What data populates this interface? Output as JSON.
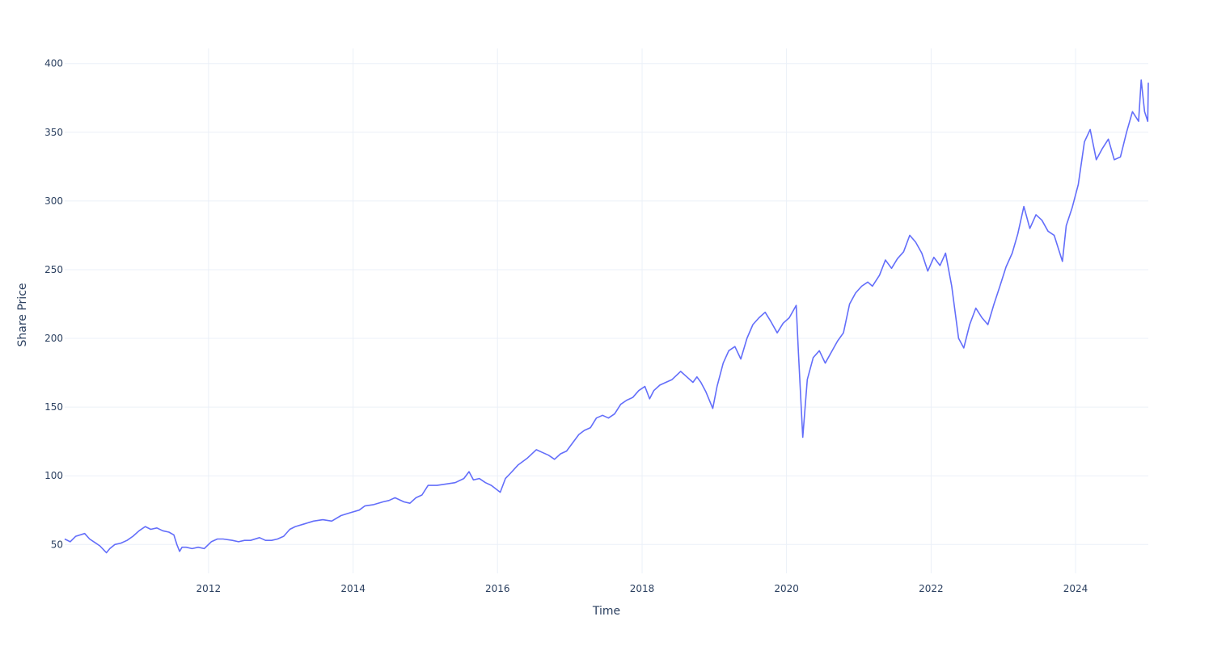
{
  "colors": {
    "line": "#636efa",
    "grid": "#ebf0f8",
    "text": "#2a3f5f",
    "background": "#ffffff"
  },
  "chart_data": {
    "type": "line",
    "title": "",
    "xlabel": "Time",
    "ylabel": "Share Price",
    "xlim": [
      "2010-01-04",
      "2025-01-03"
    ],
    "ylim": [
      29,
      411
    ],
    "grid": true,
    "legend": "none",
    "x_ticks": [
      "2012",
      "2014",
      "2016",
      "2018",
      "2020",
      "2022",
      "2024"
    ],
    "y_ticks": [
      50,
      100,
      150,
      200,
      250,
      300,
      350,
      400
    ],
    "series": [
      {
        "x": [
          "2010-01-04",
          "2010-02-01",
          "2010-03-01",
          "2010-04-15",
          "2010-05-10",
          "2010-06-10",
          "2010-07-01",
          "2010-08-03",
          "2010-08-20",
          "2010-09-15",
          "2010-10-15",
          "2010-11-15",
          "2010-12-15",
          "2011-01-15",
          "2011-02-15",
          "2011-03-15",
          "2011-04-15",
          "2011-05-15",
          "2011-06-15",
          "2011-07-10",
          "2011-07-25",
          "2011-08-08",
          "2011-08-20",
          "2011-09-10",
          "2011-10-10",
          "2011-11-10",
          "2011-12-10",
          "2012-01-15",
          "2012-02-15",
          "2012-03-15",
          "2012-05-01",
          "2012-06-01",
          "2012-07-01",
          "2012-08-01",
          "2012-09-15",
          "2012-10-15",
          "2012-11-15",
          "2012-12-15",
          "2013-01-15",
          "2013-02-15",
          "2013-03-15",
          "2013-05-01",
          "2013-06-15",
          "2013-08-01",
          "2013-09-15",
          "2013-11-01",
          "2013-12-15",
          "2014-02-01",
          "2014-03-01",
          "2014-04-15",
          "2014-06-01",
          "2014-07-01",
          "2014-08-01",
          "2014-09-15",
          "2014-10-15",
          "2014-11-15",
          "2014-12-15",
          "2015-01-15",
          "2015-03-01",
          "2015-04-15",
          "2015-06-01",
          "2015-07-15",
          "2015-08-10",
          "2015-09-01",
          "2015-10-01",
          "2015-11-01",
          "2015-12-01",
          "2016-01-15",
          "2016-02-10",
          "2016-03-01",
          "2016-04-15",
          "2016-06-01",
          "2016-07-15",
          "2016-08-15",
          "2016-09-15",
          "2016-10-15",
          "2016-11-15",
          "2016-12-15",
          "2017-01-15",
          "2017-02-15",
          "2017-03-15",
          "2017-04-15",
          "2017-05-15",
          "2017-06-15",
          "2017-07-15",
          "2017-08-15",
          "2017-09-15",
          "2017-10-15",
          "2017-11-15",
          "2017-12-15",
          "2018-01-15",
          "2018-02-08",
          "2018-03-01",
          "2018-04-01",
          "2018-05-01",
          "2018-06-01",
          "2018-07-15",
          "2018-08-15",
          "2018-09-15",
          "2018-10-05",
          "2018-10-25",
          "2018-11-20",
          "2018-12-24",
          "2019-01-15",
          "2019-02-15",
          "2019-03-15",
          "2019-04-15",
          "2019-05-15",
          "2019-06-15",
          "2019-07-15",
          "2019-08-15",
          "2019-09-15",
          "2019-10-15",
          "2019-11-15",
          "2019-12-15",
          "2020-01-15",
          "2020-02-19",
          "2020-03-01",
          "2020-03-23",
          "2020-04-15",
          "2020-05-15",
          "2020-06-15",
          "2020-07-15",
          "2020-08-15",
          "2020-09-15",
          "2020-10-15",
          "2020-11-15",
          "2020-12-15",
          "2021-01-15",
          "2021-02-15",
          "2021-03-10",
          "2021-04-15",
          "2021-05-15",
          "2021-06-15",
          "2021-07-15",
          "2021-08-15",
          "2021-09-15",
          "2021-10-15",
          "2021-11-15",
          "2021-12-15",
          "2022-01-15",
          "2022-02-15",
          "2022-03-15",
          "2022-04-15",
          "2022-05-20",
          "2022-06-15",
          "2022-07-15",
          "2022-08-15",
          "2022-09-15",
          "2022-10-15",
          "2022-11-15",
          "2022-12-15",
          "2023-01-15",
          "2023-02-15",
          "2023-03-15",
          "2023-04-15",
          "2023-05-15",
          "2023-06-15",
          "2023-07-15",
          "2023-08-15",
          "2023-09-15",
          "2023-10-27",
          "2023-11-15",
          "2023-12-15",
          "2024-01-15",
          "2024-02-15",
          "2024-03-15",
          "2024-04-15",
          "2024-05-15",
          "2024-06-15",
          "2024-07-15",
          "2024-08-15",
          "2024-09-15",
          "2024-10-15",
          "2024-11-15",
          "2024-11-28",
          "2024-12-15",
          "2024-12-31",
          "2025-01-03"
        ],
        "y": [
          54,
          52,
          56,
          58,
          54,
          51,
          49,
          44,
          47,
          50,
          51,
          53,
          56,
          60,
          63,
          61,
          62,
          60,
          59,
          57,
          50,
          45,
          48,
          48,
          47,
          48,
          47,
          52,
          54,
          54,
          53,
          52,
          53,
          53,
          55,
          53,
          53,
          54,
          56,
          61,
          63,
          65,
          67,
          68,
          67,
          71,
          73,
          75,
          78,
          79,
          81,
          82,
          84,
          81,
          80,
          84,
          86,
          93,
          93,
          94,
          95,
          98,
          103,
          97,
          98,
          95,
          93,
          88,
          98,
          101,
          108,
          113,
          119,
          117,
          115,
          112,
          116,
          118,
          124,
          130,
          133,
          135,
          142,
          144,
          142,
          145,
          152,
          155,
          157,
          162,
          165,
          156,
          162,
          166,
          168,
          170,
          176,
          172,
          168,
          172,
          168,
          161,
          149,
          165,
          182,
          191,
          194,
          185,
          200,
          210,
          215,
          219,
          212,
          204,
          211,
          215,
          224,
          190,
          128,
          170,
          186,
          191,
          182,
          190,
          198,
          204,
          225,
          233,
          238,
          241,
          238,
          246,
          257,
          251,
          258,
          263,
          275,
          270,
          262,
          249,
          259,
          253,
          262,
          238,
          200,
          193,
          210,
          222,
          215,
          210,
          225,
          238,
          252,
          262,
          276,
          296,
          280,
          290,
          286,
          278,
          275,
          256,
          282,
          295,
          312,
          343,
          352,
          330,
          338,
          345,
          330,
          332,
          350,
          365,
          358,
          388,
          365,
          358,
          386
        ]
      }
    ]
  }
}
